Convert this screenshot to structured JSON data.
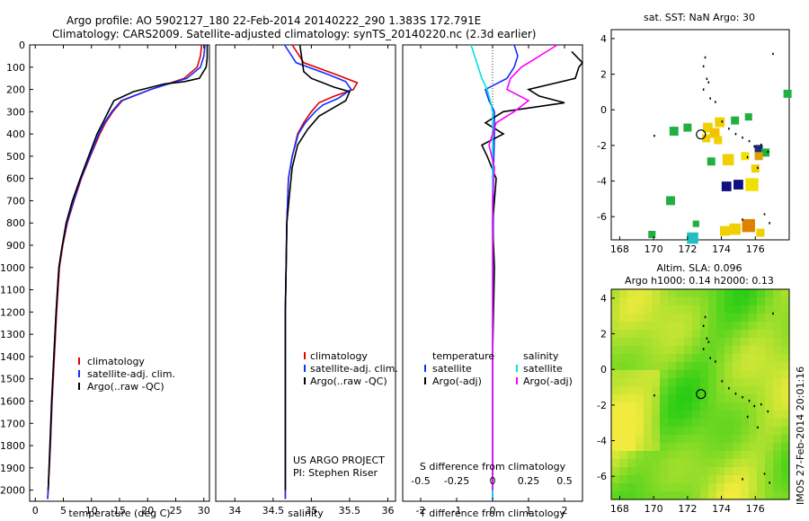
{
  "header": {
    "line1": "Argo profile: AO 5902127_180 22-Feb-2014 20140222_290 1.383S 172.791E",
    "line2": "Climatology: CARS2009. Satellite-adjusted climatology: synTS_20140220.nc (2.3d earlier)"
  },
  "colors": {
    "climatology": "#e00000",
    "satellite": "#1030ff",
    "argo": "#000000",
    "sat_sal": "#00e0e0",
    "argo_sal": "#ff00ff"
  },
  "chart_data": [
    {
      "type": "line",
      "id": "temperature",
      "xlabel": "temperature (deg C)",
      "ylabel": "",
      "xlim": [
        -1,
        31
      ],
      "ylim": [
        2050,
        0
      ],
      "xticks": [
        0,
        5,
        10,
        15,
        20,
        25,
        30
      ],
      "yticks": [
        0,
        100,
        200,
        300,
        400,
        500,
        600,
        700,
        800,
        900,
        1000,
        1100,
        1200,
        1300,
        1400,
        1500,
        1600,
        1700,
        1800,
        1900,
        2000
      ],
      "legend": [
        "climatology",
        "satellite-adj. clim.",
        "Argo(..raw -QC)"
      ],
      "series": [
        {
          "name": "climatology",
          "x": [
            29.6,
            29.4,
            28.8,
            26.5,
            20.5,
            15.5,
            13.8,
            12.5,
            11.5,
            9.8,
            8.2,
            6.9,
            5.7,
            4.9,
            4.3,
            3.8,
            3.4,
            3.0,
            2.7,
            2.5,
            2.3,
            2.2
          ],
          "y": [
            0,
            50,
            100,
            150,
            200,
            250,
            300,
            350,
            400,
            500,
            600,
            700,
            800,
            900,
            1000,
            1200,
            1400,
            1600,
            1800,
            1900,
            2000,
            2040
          ]
        },
        {
          "name": "satellite-adj. clim.",
          "x": [
            30.2,
            30.0,
            29.4,
            27.0,
            20.5,
            15.3,
            13.6,
            12.3,
            11.3,
            9.7,
            8.1,
            6.8,
            5.6,
            4.8,
            4.2,
            3.7,
            3.3,
            2.95,
            2.65,
            2.45,
            2.3,
            2.2
          ],
          "y": [
            0,
            50,
            100,
            150,
            200,
            250,
            300,
            350,
            400,
            500,
            600,
            700,
            800,
            900,
            1000,
            1200,
            1400,
            1600,
            1800,
            1900,
            2000,
            2040
          ]
        },
        {
          "name": "Argo(..raw -QC)",
          "x": [
            30.6,
            30.6,
            30.4,
            29.2,
            26.5,
            23.0,
            17.5,
            14.0,
            13.0,
            12.0,
            11.0,
            9.5,
            8.0,
            6.6,
            5.5,
            4.8,
            4.2,
            3.7,
            3.3,
            2.9,
            2.6,
            2.45,
            2.3
          ],
          "y": [
            0,
            60,
            100,
            150,
            165,
            175,
            210,
            250,
            300,
            350,
            400,
            500,
            600,
            700,
            800,
            900,
            1000,
            1200,
            1400,
            1600,
            1800,
            1900,
            2000
          ]
        }
      ]
    },
    {
      "type": "line",
      "id": "salinity",
      "xlabel": "salinity",
      "xlim": [
        33.75,
        36.1
      ],
      "ylim": [
        2050,
        0
      ],
      "xticks": [
        34,
        34.5,
        35,
        35.5,
        36
      ],
      "legend": [
        "climatology",
        "satellite-adj. clim.",
        "Argo(..raw -QC)"
      ],
      "annotation": [
        "US ARGO PROJECT",
        "PI: Stephen Riser"
      ],
      "series": [
        {
          "name": "climatology",
          "x": [
            34.75,
            34.9,
            35.3,
            35.6,
            35.55,
            35.3,
            35.1,
            35.0,
            34.9,
            34.82,
            34.75,
            34.7,
            34.68,
            34.67,
            34.66,
            34.66,
            34.66,
            34.66,
            34.66
          ],
          "y": [
            0,
            80,
            130,
            170,
            200,
            230,
            260,
            300,
            350,
            400,
            500,
            600,
            800,
            1000,
            1200,
            1400,
            1600,
            1800,
            2040
          ]
        },
        {
          "name": "satellite-adj. clim.",
          "x": [
            34.65,
            34.8,
            35.2,
            35.45,
            35.52,
            35.35,
            35.15,
            35.05,
            34.92,
            34.83,
            34.75,
            34.7,
            34.68,
            34.67,
            34.66,
            34.66,
            34.66,
            34.66,
            34.66
          ],
          "y": [
            0,
            80,
            130,
            165,
            200,
            240,
            270,
            300,
            350,
            400,
            500,
            600,
            800,
            1000,
            1200,
            1400,
            1600,
            1800,
            2040
          ]
        },
        {
          "name": "Argo(..raw -QC)",
          "x": [
            34.85,
            34.9,
            35.0,
            35.3,
            35.5,
            35.45,
            35.3,
            35.1,
            34.95,
            34.82,
            34.75,
            34.72,
            34.68,
            34.67,
            34.66,
            34.66,
            34.66,
            34.66
          ],
          "y": [
            0,
            120,
            150,
            190,
            210,
            250,
            280,
            320,
            380,
            450,
            550,
            650,
            800,
            1000,
            1200,
            1500,
            1800,
            2000
          ]
        }
      ]
    },
    {
      "type": "line",
      "id": "difference",
      "xlabel": "T difference from climatology",
      "xlabel_top": "S difference from climatology",
      "xlim": [
        -2.5,
        2.5
      ],
      "ylim": [
        2050,
        0
      ],
      "xticks": [
        -2,
        -1,
        0,
        1,
        2
      ],
      "xticks_top": [
        "-0.5",
        "-0.25",
        "0",
        "0.25",
        "0.5"
      ],
      "legend": {
        "temperature": [
          "satellite",
          "Argo(-adj)"
        ],
        "salinity": [
          "satellite",
          "Argo(-adj)"
        ],
        "titles": [
          "temperature",
          "salinity"
        ]
      },
      "series": [
        {
          "name": "T satellite",
          "x": [
            0.6,
            0.7,
            0.6,
            0.4,
            -0.2,
            -0.1,
            0.05,
            0.05,
            0.02,
            0.02,
            0.0,
            0.0,
            0.0
          ],
          "y": [
            0,
            50,
            100,
            150,
            200,
            250,
            300,
            400,
            600,
            800,
            1200,
            1600,
            2040
          ]
        },
        {
          "name": "T Argo(-adj)",
          "x": [
            2.2,
            2.5,
            2.4,
            2.3,
            1.0,
            1.3,
            2.0,
            0.3,
            -0.2,
            0.3,
            -0.3,
            -0.15,
            0.1,
            0.05,
            0.0,
            0.05,
            0.0,
            0.0
          ],
          "y": [
            30,
            80,
            100,
            150,
            200,
            230,
            260,
            300,
            350,
            400,
            450,
            500,
            600,
            700,
            800,
            1000,
            1400,
            2000
          ]
        },
        {
          "name": "S satellite",
          "x": [
            -0.6,
            -0.5,
            -0.4,
            -0.3,
            -0.15,
            -0.05,
            0.0,
            0.0,
            0.0,
            0.0
          ],
          "y": [
            0,
            50,
            100,
            150,
            200,
            260,
            300,
            500,
            1000,
            2040
          ]
        },
        {
          "name": "S Argo(-adj)",
          "x": [
            1.8,
            1.2,
            0.8,
            0.5,
            0.4,
            1.0,
            0.6,
            0.1,
            -0.1,
            0.05,
            0.0,
            0.0
          ],
          "y": [
            0,
            60,
            100,
            150,
            200,
            250,
            300,
            350,
            450,
            550,
            700,
            2000
          ]
        }
      ]
    },
    {
      "type": "scatter",
      "id": "sst_map",
      "title": "sat. SST: NaN Argo: 30",
      "xlim": [
        167.5,
        178
      ],
      "ylim": [
        -7.3,
        4.5
      ],
      "xticks": [
        168,
        170,
        172,
        174,
        176
      ],
      "yticks": [
        4,
        2,
        0,
        -2,
        -4,
        -6
      ],
      "profile_location": {
        "lon": 172.791,
        "lat": -1.383
      }
    },
    {
      "type": "heatmap",
      "id": "sla_map",
      "title_line1": "Altim. SLA: 0.096",
      "title_line2": "Argo h1000: 0.14 h2000: 0.13",
      "xlim": [
        167.5,
        178
      ],
      "ylim": [
        -7.3,
        4.5
      ],
      "xticks": [
        168,
        170,
        172,
        174,
        176
      ],
      "yticks": [
        4,
        2,
        0,
        -2,
        -4,
        -6
      ],
      "profile_location": {
        "lon": 172.791,
        "lat": -1.383
      }
    }
  ],
  "side_label": "IMOS 27-Feb-2014 20:01:16"
}
